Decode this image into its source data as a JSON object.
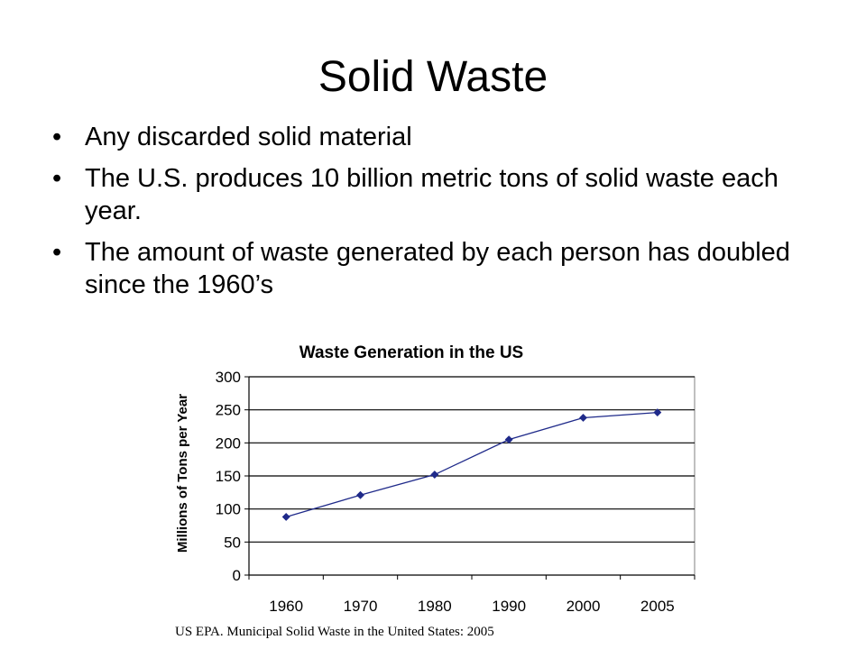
{
  "slide": {
    "title": "Solid Waste",
    "bullets": [
      "Any discarded solid material",
      "The U.S. produces 10 billion metric tons of solid waste each year.",
      "The amount of waste generated by each person has doubled since the 1960’s"
    ],
    "bullet_glyph": "•"
  },
  "chart_data": {
    "type": "line",
    "title": "Waste Generation in the US",
    "xlabel": "",
    "ylabel": "Millions of Tons per Year",
    "categories": [
      "1960",
      "1970",
      "1980",
      "1990",
      "2000",
      "2005"
    ],
    "series": [
      {
        "values": [
          88,
          121,
          152,
          205,
          238,
          246
        ]
      }
    ],
    "yticks": [
      "0",
      "50",
      "100",
      "150",
      "200",
      "250",
      "300"
    ],
    "ylim": [
      0,
      300
    ],
    "grid": "horizontal",
    "legend": "none",
    "line_color": "#1f2a8a",
    "marker": "diamond"
  },
  "source_note": "US EPA. Municipal Solid Waste in the United States: 2005"
}
